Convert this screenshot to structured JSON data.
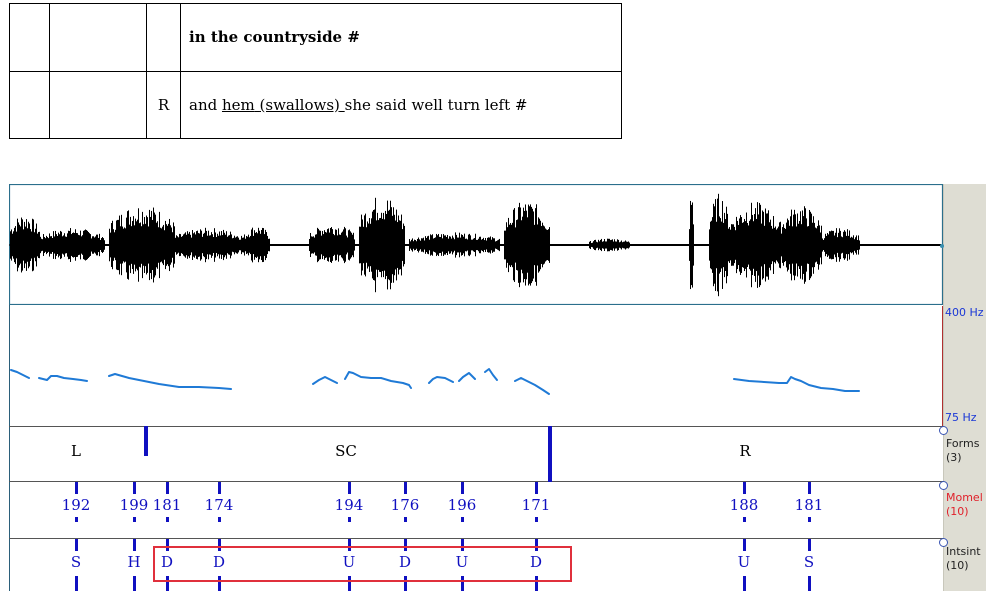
{
  "transcript": {
    "rows": [
      {
        "col1": "",
        "col2": "",
        "speaker": "",
        "text_bold": "in the countryside #"
      },
      {
        "col1": "",
        "col2": "",
        "speaker": "R",
        "parts": [
          "and ",
          "hem",
          " ",
          "(swallows)",
          " ",
          "she said well turn left #"
        ]
      }
    ]
  },
  "pitch_axis": {
    "top_label": "400 Hz",
    "bottom_label": "75 Hz"
  },
  "tiers": {
    "forms": {
      "label": "Forms",
      "count": "(3)",
      "items": [
        "L",
        "SC",
        "R"
      ]
    },
    "momel": {
      "label": "Momel",
      "count": "(10)",
      "values": [
        "192",
        "199",
        "181",
        "174",
        "194",
        "176",
        "196",
        "171",
        "188",
        "181"
      ],
      "color": "#e0202a"
    },
    "intsint": {
      "label": "Intsint",
      "count": "(10)",
      "symbols": [
        "S",
        "H",
        "D",
        "D",
        "U",
        "D",
        "U",
        "D",
        "U",
        "S"
      ]
    }
  },
  "colors": {
    "wave": "#000000",
    "pitch": "#1f7ad6",
    "marker": "#1010c0",
    "selection": "#e0303c",
    "axis_label": "#1a37d6"
  }
}
